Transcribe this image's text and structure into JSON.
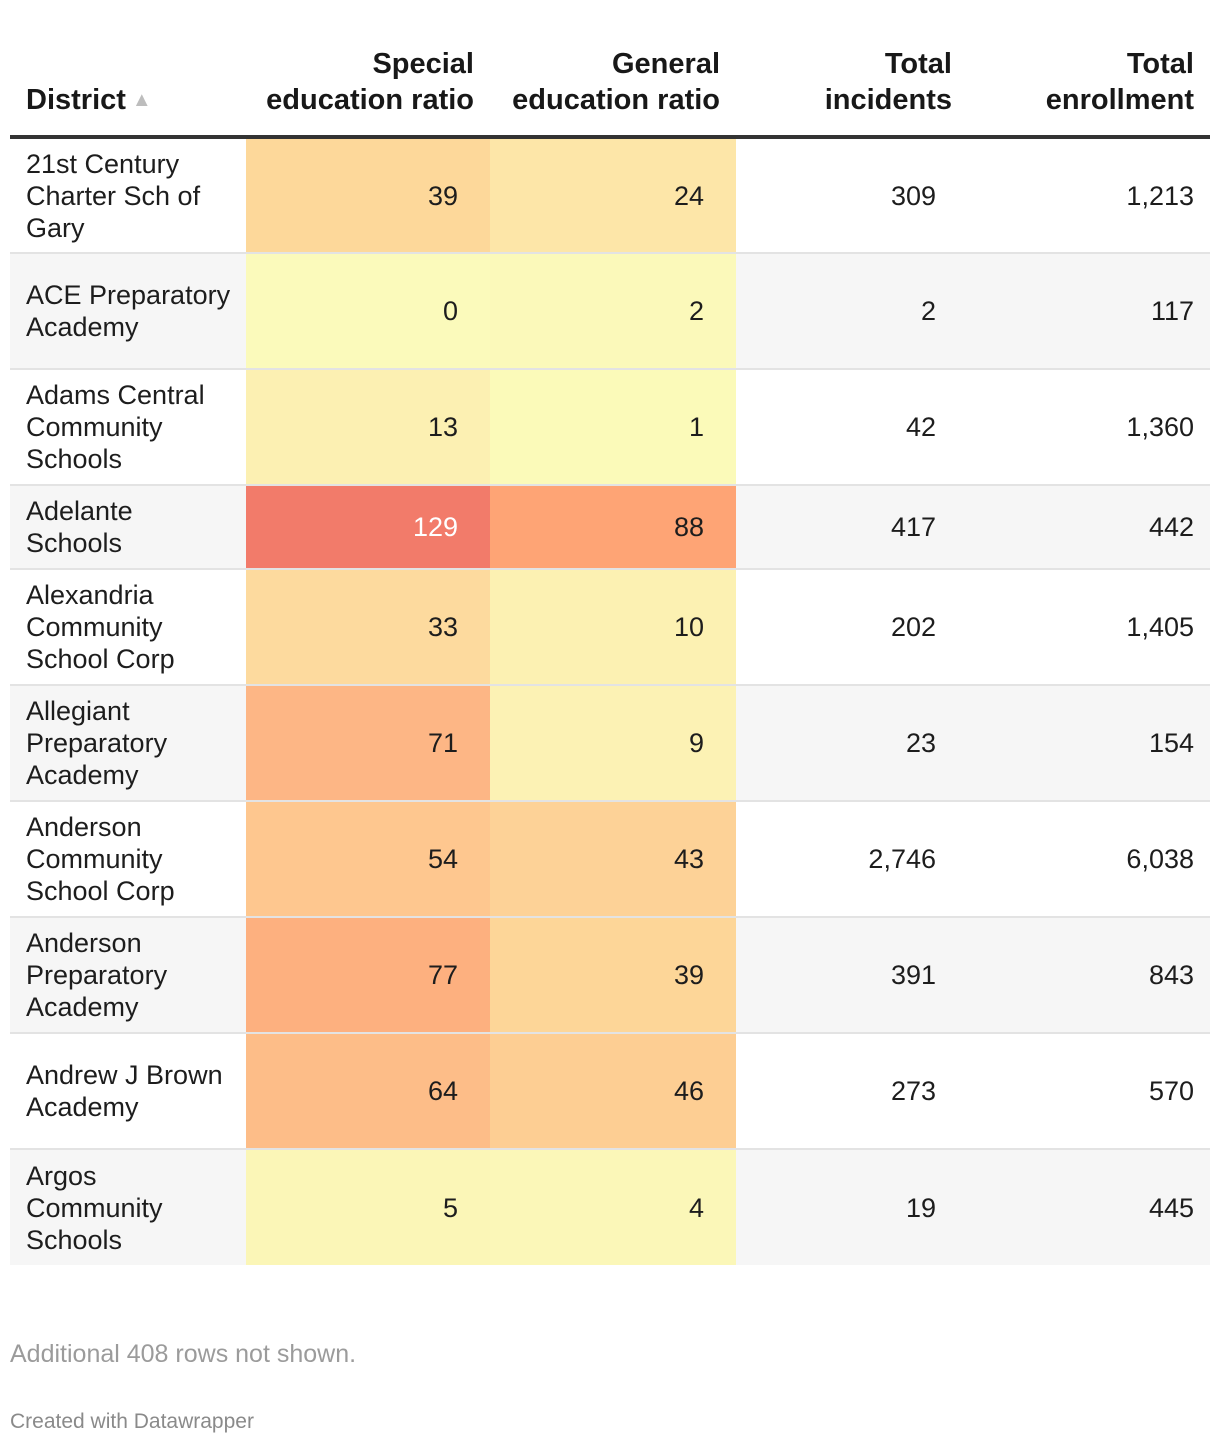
{
  "chart_data": {
    "type": "table",
    "columns": [
      {
        "key": "district",
        "label": "District",
        "sort": "▲"
      },
      {
        "key": "special",
        "label": "Special education ratio"
      },
      {
        "key": "general",
        "label": "General education ratio"
      },
      {
        "key": "incidents",
        "label": "Total incidents"
      },
      {
        "key": "enrollment",
        "label": "Total enrollment"
      }
    ],
    "rows": [
      {
        "district": "21st Century Charter Sch of Gary",
        "special": 39,
        "general": 24,
        "incidents": "309",
        "enrollment": "1,213",
        "special_color": "#fdd89a",
        "general_color": "#fde6a8"
      },
      {
        "district": "ACE Preparatory Academy",
        "special": 0,
        "general": 2,
        "incidents": "2",
        "enrollment": "117",
        "special_color": "#fbfabb",
        "general_color": "#fbf9ba"
      },
      {
        "district": "Adams Central Community Schools",
        "special": 13,
        "general": 1,
        "incidents": "42",
        "enrollment": "1,360",
        "special_color": "#fcf0b2",
        "general_color": "#fbfab9"
      },
      {
        "district": "Adelante Schools",
        "special": 129,
        "general": 88,
        "incidents": "417",
        "enrollment": "442",
        "special_color": "#f27b6a",
        "general_color": "#fea475"
      },
      {
        "district": "Alexandria Community School Corp",
        "special": 33,
        "general": 10,
        "incidents": "202",
        "enrollment": "1,405",
        "special_color": "#fdda9e",
        "general_color": "#fcf1b2"
      },
      {
        "district": "Allegiant Preparatory Academy",
        "special": 71,
        "general": 9,
        "incidents": "23",
        "enrollment": "154",
        "special_color": "#fdb685",
        "general_color": "#fcf2b4"
      },
      {
        "district": "Anderson Community School Corp",
        "special": 54,
        "general": 43,
        "incidents": "2,746",
        "enrollment": "6,038",
        "special_color": "#fec78f",
        "general_color": "#fdd297"
      },
      {
        "district": "Anderson Preparatory Academy",
        "special": 77,
        "general": 39,
        "incidents": "391",
        "enrollment": "843",
        "special_color": "#fdb07f",
        "general_color": "#fdd698"
      },
      {
        "district": "Andrew J Brown Academy",
        "special": 64,
        "general": 46,
        "incidents": "273",
        "enrollment": "570",
        "special_color": "#fdbd88",
        "general_color": "#fdce93"
      },
      {
        "district": "Argos Community Schools",
        "special": 5,
        "general": 4,
        "incidents": "19",
        "enrollment": "445",
        "special_color": "#fbf6b7",
        "general_color": "#fbf7b8"
      }
    ],
    "dark_text_threshold": 100
  },
  "footnote": "Additional 408 rows not shown.",
  "credit": "Created with Datawrapper"
}
